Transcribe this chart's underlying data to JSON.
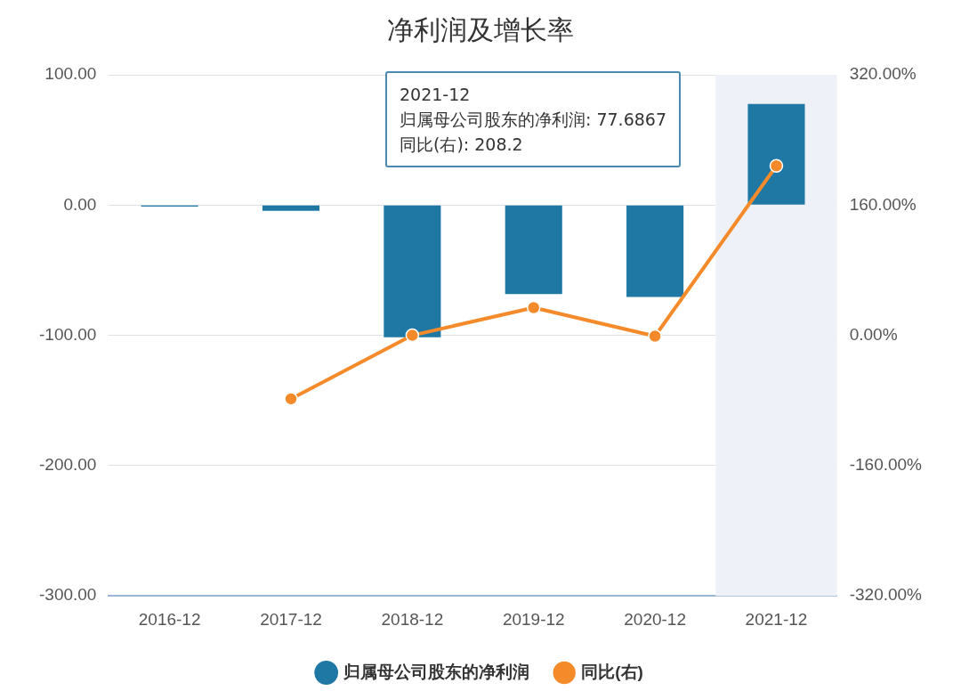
{
  "chart_data": {
    "type": "bar",
    "title": "净利润及增长率",
    "categories": [
      "2016-12",
      "2017-12",
      "2018-12",
      "2019-12",
      "2020-12",
      "2021-12"
    ],
    "series": [
      {
        "name": "归属母公司股东的净利润",
        "color": "#1f78a4",
        "values": [
          -1.2,
          -4.4,
          -101.5,
          -68.4,
          -70.6,
          77.6867
        ]
      },
      {
        "name": "同比(右)",
        "type": "line",
        "axis": "y2",
        "color": "#f58a2b",
        "values": [
          null,
          -78,
          0,
          34,
          -1,
          208.2
        ]
      }
    ],
    "ylim": [
      -300,
      100
    ],
    "yticks": [
      {
        "value": -300,
        "label": "-300.00"
      },
      {
        "value": -200,
        "label": "-200.00"
      },
      {
        "value": -100,
        "label": "-100.00"
      },
      {
        "value": 0,
        "label": "0.00"
      },
      {
        "value": 100,
        "label": "100.00"
      }
    ],
    "y2lim": [
      -320,
      320
    ],
    "y2ticks": [
      {
        "value": -320,
        "label": "-320.00%"
      },
      {
        "value": -160,
        "label": "-160.00%"
      },
      {
        "value": 0,
        "label": "0.00%"
      },
      {
        "value": 160,
        "label": "160.00%"
      },
      {
        "value": 320,
        "label": "320.00%"
      }
    ],
    "bands": [
      {
        "axis": "x",
        "from": "2021-12",
        "to": "2021-12",
        "color": "#eef2f8"
      }
    ],
    "annotations": [
      "2021-12",
      "归属母公司股东的净利润: 77.6867",
      "同比(右): 208.2"
    ],
    "grid": "y",
    "legend": "bottom",
    "marker": "circle",
    "line_style": "solid"
  }
}
